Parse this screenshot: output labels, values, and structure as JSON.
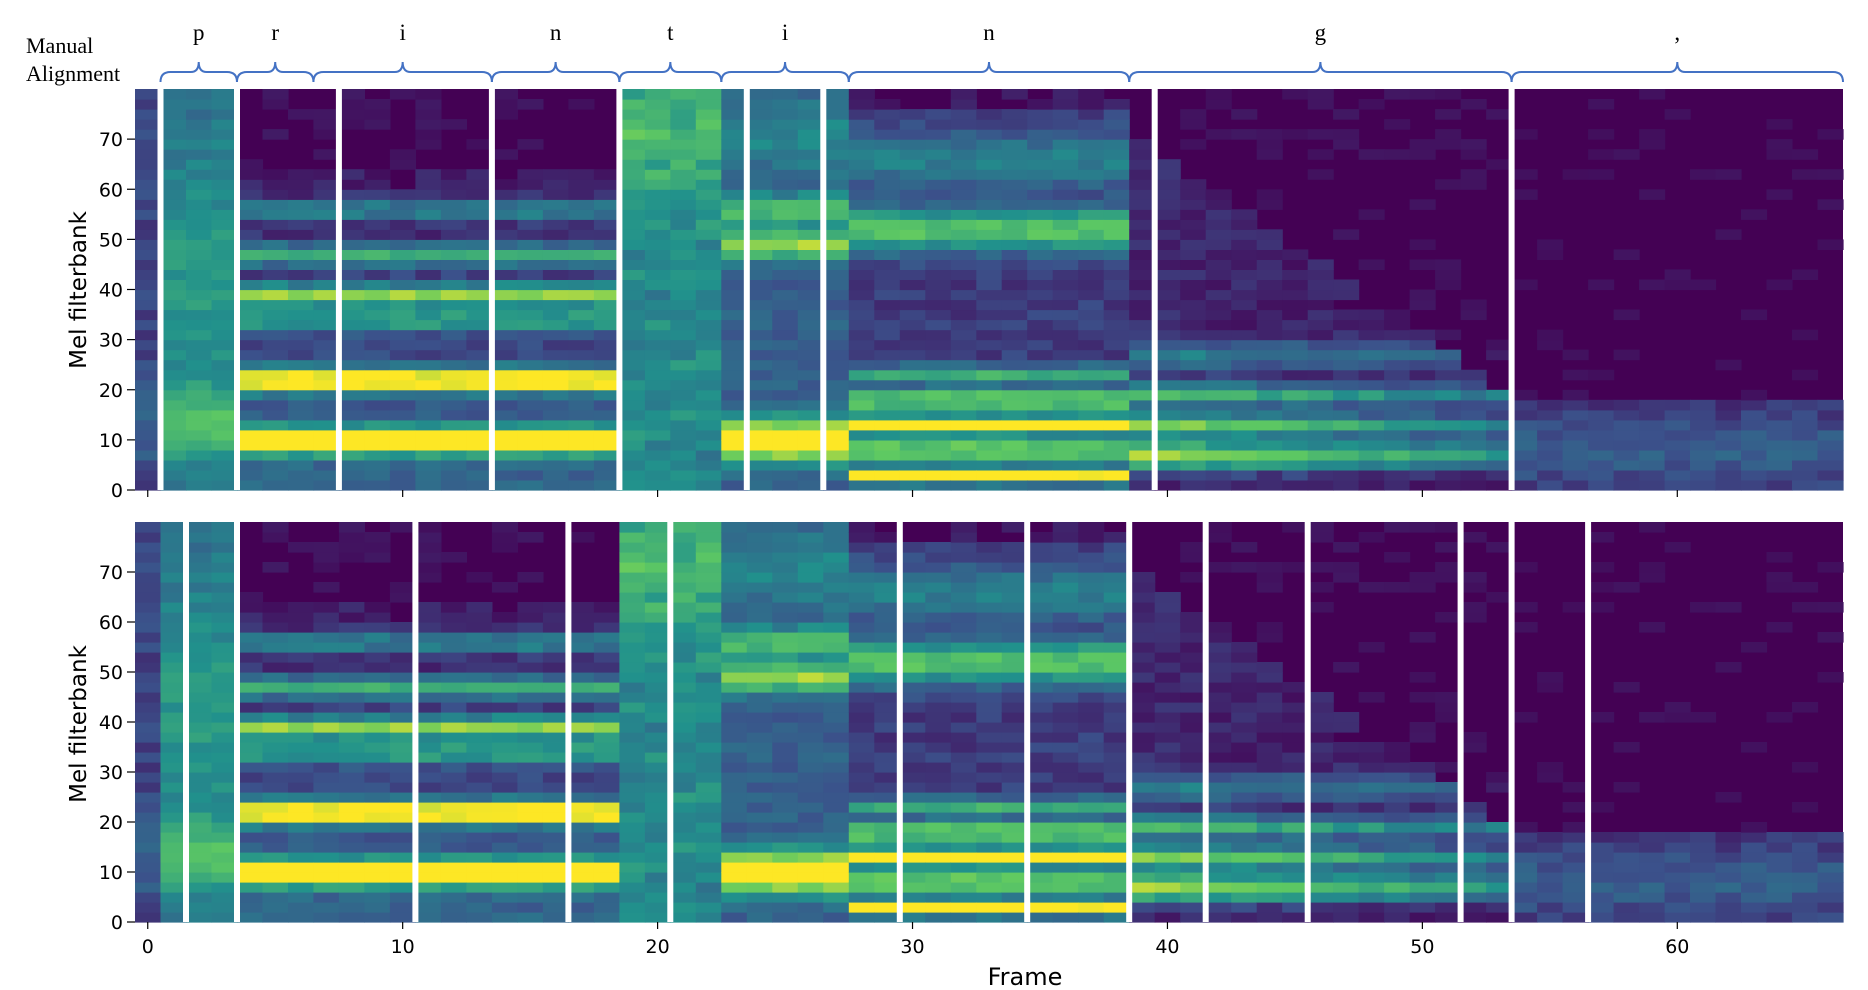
{
  "chart_data": {
    "type": "heatmap",
    "alignment_label_line1": "Manual",
    "alignment_label_line2": "Alignment",
    "xlabel": "Frame",
    "ylabel": "Mel filterbank",
    "xlim": [
      -0.5,
      66.5
    ],
    "ylim": [
      0,
      80
    ],
    "x_ticks": [
      0,
      10,
      20,
      30,
      40,
      50,
      60
    ],
    "y_ticks": [
      0,
      10,
      20,
      30,
      40,
      50,
      60,
      70
    ],
    "colormap": [
      "#440154",
      "#3b528b",
      "#21918c",
      "#5ec962",
      "#fde725"
    ],
    "manual_alignment": [
      {
        "phone": "p",
        "start": 0.5,
        "end": 3.5
      },
      {
        "phone": "r",
        "start": 3.5,
        "end": 6.5
      },
      {
        "phone": "i",
        "start": 6.5,
        "end": 13.5
      },
      {
        "phone": "n",
        "start": 13.5,
        "end": 18.5
      },
      {
        "phone": "t",
        "start": 18.5,
        "end": 22.5
      },
      {
        "phone": "i",
        "start": 22.5,
        "end": 27.5
      },
      {
        "phone": "n",
        "start": 27.5,
        "end": 38.5
      },
      {
        "phone": "g",
        "start": 38.5,
        "end": 53.5
      },
      {
        "phone": ",",
        "start": 53.5,
        "end": 66.5
      }
    ],
    "panels": [
      {
        "name": "top",
        "boundaries": [
          0.5,
          3.5,
          7.5,
          13.5,
          18.5,
          23.5,
          26.5,
          39.5,
          53.5
        ]
      },
      {
        "name": "bottom",
        "boundaries": [
          1.5,
          3.5,
          10.5,
          16.5,
          20.5,
          29.5,
          34.5,
          38.5,
          41.5,
          45.5,
          51.5,
          53.5,
          56.5
        ]
      }
    ],
    "phone_regions": [
      {
        "start": -0.5,
        "end": 0.5,
        "class": "sil"
      },
      {
        "start": 0.5,
        "end": 3.5,
        "class": "stop"
      },
      {
        "start": 3.5,
        "end": 18.5,
        "class": "voiced"
      },
      {
        "start": 18.5,
        "end": 22.5,
        "class": "burst"
      },
      {
        "start": 22.5,
        "end": 27.5,
        "class": "vowel"
      },
      {
        "start": 27.5,
        "end": 38.5,
        "class": "nasal"
      },
      {
        "start": 38.5,
        "end": 53.5,
        "class": "decay"
      },
      {
        "start": 53.5,
        "end": 66.5,
        "class": "tail"
      }
    ]
  }
}
